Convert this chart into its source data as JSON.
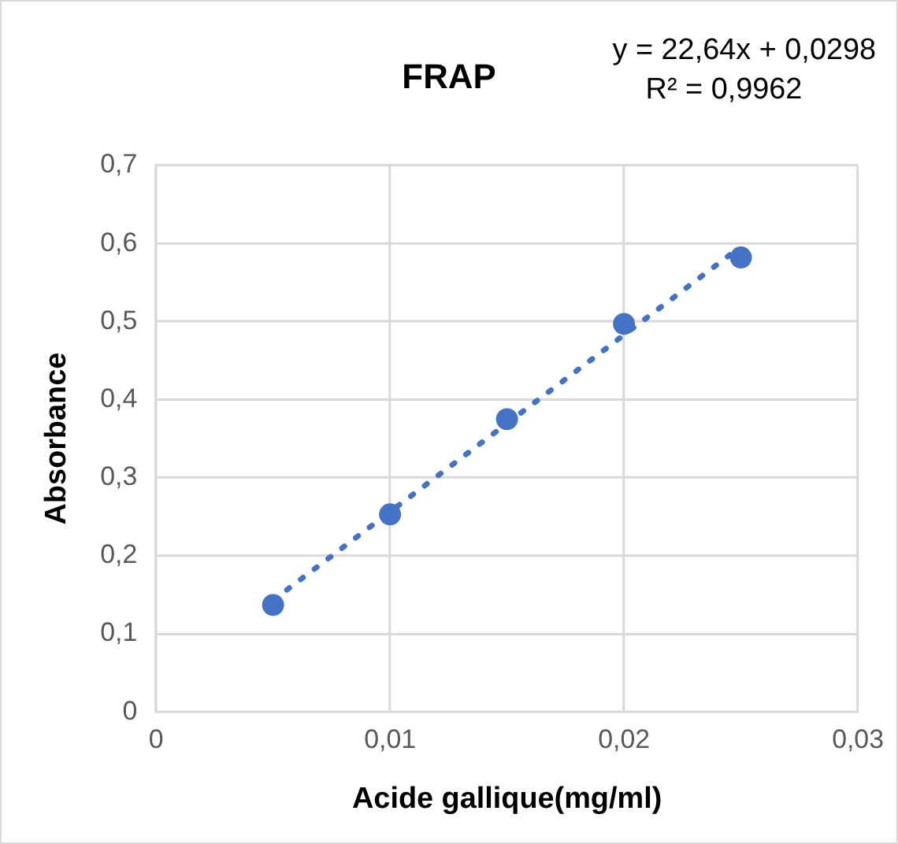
{
  "chart_data": {
    "type": "scatter",
    "title": "FRAP",
    "xlabel": "Acide gallique(mg/ml)",
    "ylabel": "Absorbance",
    "annotations": [
      "y = 22,64x + 0,0298",
      "R² = 0,9962"
    ],
    "series": [
      {
        "color": "#4472c4",
        "x": [
          0.005,
          0.01,
          0.015,
          0.02,
          0.025
        ],
        "values": [
          0.137,
          0.253,
          0.375,
          0.497,
          0.582
        ],
        "marker": "circle"
      },
      {
        "type": "line",
        "color": "#4472c4",
        "x": [
          0.005,
          0.025
        ],
        "values": [
          0.143,
          0.596
        ],
        "marker": "none",
        "line_style": "dotted"
      }
    ],
    "xlim": [
      0,
      0.03
    ],
    "xticks": [
      0,
      {
        "value": 0.01,
        "label": "0,01"
      },
      {
        "value": 0.02,
        "label": "0,02"
      },
      {
        "value": 0.03,
        "label": "0,03"
      }
    ],
    "ylim": [
      0,
      0.7
    ],
    "yticks": [
      0,
      {
        "value": 0.1,
        "label": "0,1"
      },
      {
        "value": 0.2,
        "label": "0,2"
      },
      {
        "value": 0.3,
        "label": "0,3"
      },
      {
        "value": 0.4,
        "label": "0,4"
      },
      {
        "value": 0.5,
        "label": "0,5"
      },
      {
        "value": 0.6,
        "label": "0,6"
      },
      {
        "value": 0.7,
        "label": "0,7"
      }
    ],
    "grid": true,
    "legend": false
  }
}
